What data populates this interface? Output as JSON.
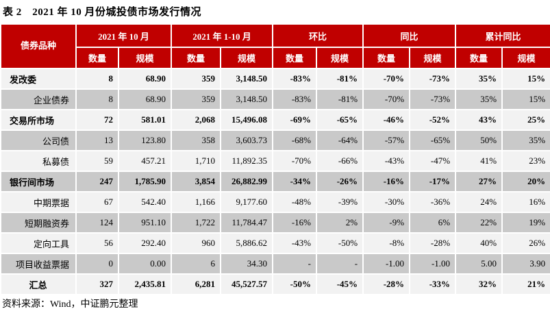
{
  "title": "表 2　2021 年 10 月份城投债市场发行情况",
  "source_note": "资料来源：Wind，中证鹏元整理",
  "colors": {
    "header_red": "#C00000",
    "row_light": "#F2F2F2",
    "row_dark": "#C9C9C9",
    "header_text": "#FFFFFF"
  },
  "table": {
    "corner_header": "债券品种",
    "groups": [
      {
        "label": "2021 年 10 月"
      },
      {
        "label": "2021 年 1-10 月"
      },
      {
        "label": "环比"
      },
      {
        "label": "同比"
      },
      {
        "label": "累计同比"
      }
    ],
    "subheaders": [
      "数量",
      "规模"
    ],
    "rows": [
      {
        "name": "发改委",
        "level": "group",
        "bold": true,
        "values": [
          "8",
          "68.90",
          "359",
          "3,148.50",
          "-83%",
          "-81%",
          "-70%",
          "-73%",
          "35%",
          "15%"
        ]
      },
      {
        "name": "企业债券",
        "level": "sub",
        "bold": false,
        "values": [
          "8",
          "68.90",
          "359",
          "3,148.50",
          "-83%",
          "-81%",
          "-70%",
          "-73%",
          "35%",
          "15%"
        ]
      },
      {
        "name": "交易所市场",
        "level": "group",
        "bold": true,
        "values": [
          "72",
          "581.01",
          "2,068",
          "15,496.08",
          "-69%",
          "-65%",
          "-46%",
          "-52%",
          "43%",
          "25%"
        ]
      },
      {
        "name": "公司债",
        "level": "sub",
        "bold": false,
        "values": [
          "13",
          "123.80",
          "358",
          "3,603.73",
          "-68%",
          "-64%",
          "-57%",
          "-65%",
          "50%",
          "35%"
        ]
      },
      {
        "name": "私募债",
        "level": "sub",
        "bold": false,
        "values": [
          "59",
          "457.21",
          "1,710",
          "11,892.35",
          "-70%",
          "-66%",
          "-43%",
          "-47%",
          "41%",
          "23%"
        ]
      },
      {
        "name": "银行间市场",
        "level": "group",
        "bold": true,
        "values": [
          "247",
          "1,785.90",
          "3,854",
          "26,882.99",
          "-34%",
          "-26%",
          "-16%",
          "-17%",
          "27%",
          "20%"
        ]
      },
      {
        "name": "中期票据",
        "level": "sub",
        "bold": false,
        "values": [
          "67",
          "542.40",
          "1,166",
          "9,177.60",
          "-48%",
          "-39%",
          "-30%",
          "-36%",
          "24%",
          "16%"
        ]
      },
      {
        "name": "短期融资券",
        "level": "sub",
        "bold": false,
        "values": [
          "124",
          "951.10",
          "1,722",
          "11,784.47",
          "-16%",
          "2%",
          "-9%",
          "6%",
          "22%",
          "19%"
        ]
      },
      {
        "name": "定向工具",
        "level": "sub",
        "bold": false,
        "values": [
          "56",
          "292.40",
          "960",
          "5,886.62",
          "-43%",
          "-50%",
          "-8%",
          "-28%",
          "40%",
          "26%"
        ]
      },
      {
        "name": "项目收益票据",
        "level": "sub",
        "bold": false,
        "values": [
          "0",
          "0.00",
          "6",
          "34.30",
          "-",
          "-",
          "-1.00",
          "-1.00",
          "5.00",
          "3.90"
        ]
      },
      {
        "name": "汇总",
        "level": "total",
        "bold": true,
        "values": [
          "327",
          "2,435.81",
          "6,281",
          "45,527.57",
          "-50%",
          "-45%",
          "-28%",
          "-33%",
          "32%",
          "21%"
        ]
      }
    ]
  }
}
